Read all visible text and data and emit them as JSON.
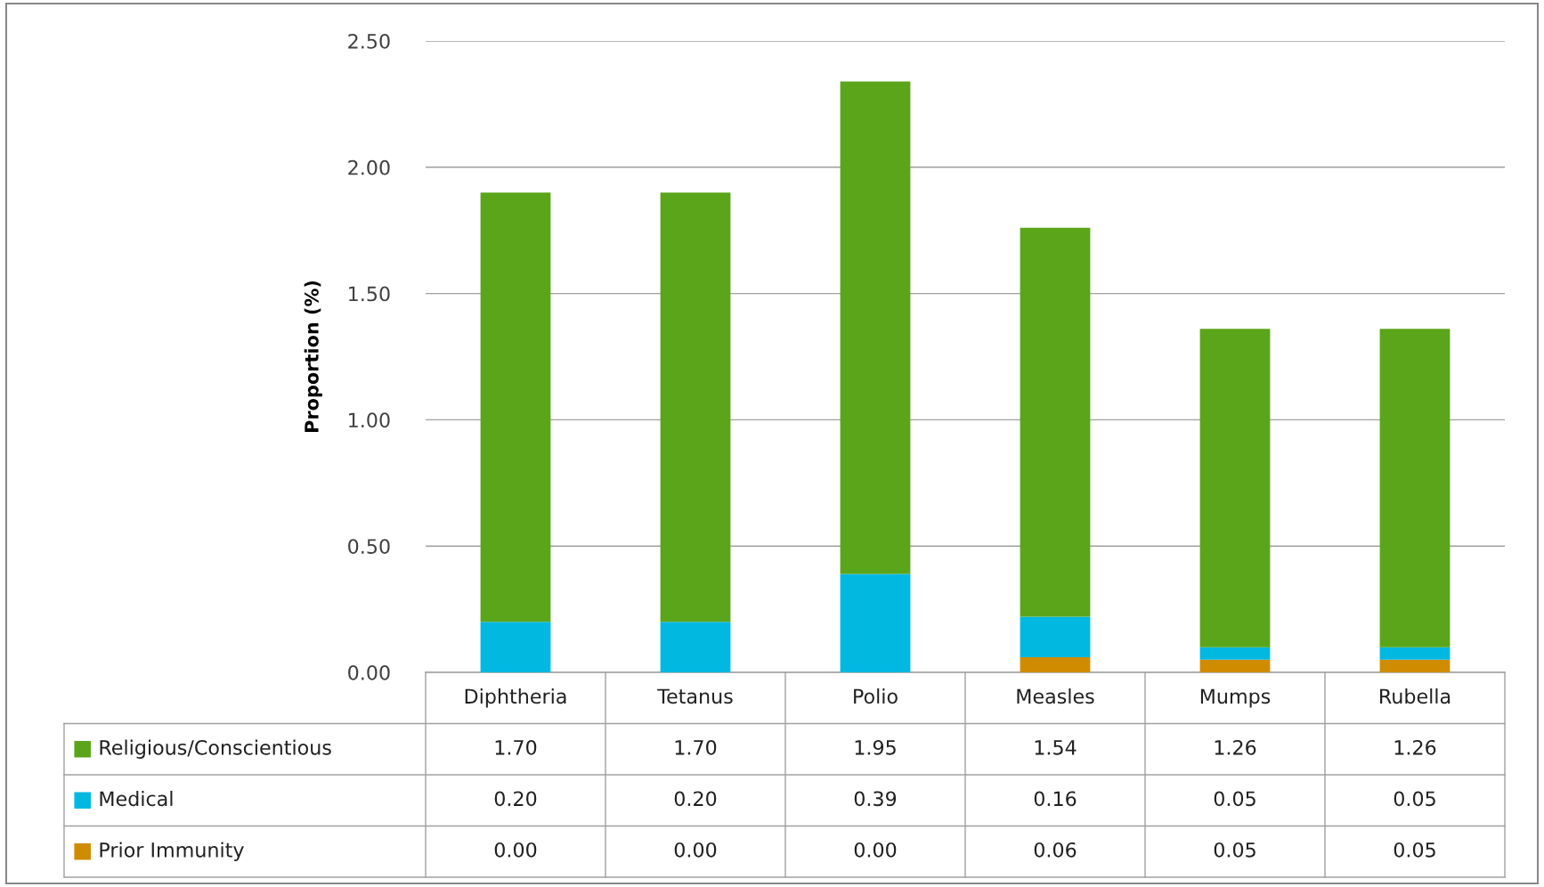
{
  "chart_data": {
    "type": "bar",
    "stacked": true,
    "ylabel": "Proportion (%)",
    "categories": [
      "Diphtheria",
      "Tetanus",
      "Polio",
      "Measles",
      "Mumps",
      "Rubella"
    ],
    "series": [
      {
        "name": "Prior Immunity",
        "color": "#d08c00",
        "values": [
          0.0,
          0.0,
          0.0,
          0.06,
          0.05,
          0.05
        ],
        "value_labels": [
          "0.00",
          "0.00",
          "0.00",
          "0.06",
          "0.05",
          "0.05"
        ]
      },
      {
        "name": "Medical",
        "color": "#00b8e0",
        "values": [
          0.2,
          0.2,
          0.39,
          0.16,
          0.05,
          0.05
        ],
        "value_labels": [
          "0.20",
          "0.20",
          "0.39",
          "0.16",
          "0.05",
          "0.05"
        ]
      },
      {
        "name": "Religious/Conscientious",
        "color": "#5aa51a",
        "values": [
          1.7,
          1.7,
          1.95,
          1.54,
          1.26,
          1.26
        ],
        "value_labels": [
          "1.70",
          "1.70",
          "1.95",
          "1.54",
          "1.26",
          "1.26"
        ]
      }
    ],
    "ylim": [
      0,
      2.5
    ],
    "yticks": [
      {
        "value": 0,
        "label": "0.00"
      },
      {
        "value": 0.5,
        "label": "0.50"
      },
      {
        "value": 1.0,
        "label": "1.00"
      },
      {
        "value": 1.5,
        "label": "1.50"
      },
      {
        "value": 2.0,
        "label": "2.00"
      },
      {
        "value": 2.5,
        "label": "2.50"
      }
    ],
    "grid": "y",
    "legend": "bottom"
  }
}
